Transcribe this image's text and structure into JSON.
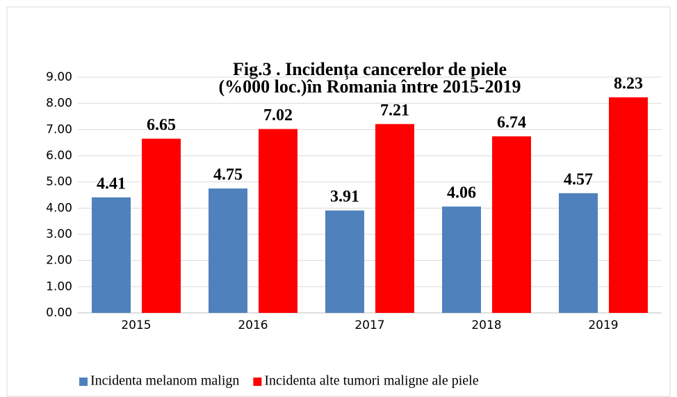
{
  "chart_data": {
    "type": "bar",
    "title": [
      "Fig.3 . Incidența cancerelor de piele",
      "(%000 loc.)în Romania între 2015-2019"
    ],
    "categories": [
      "2015",
      "2016",
      "2017",
      "2018",
      "2019"
    ],
    "series": [
      {
        "name": "Incidenta melanom malign",
        "color": "#4f81bd",
        "values": [
          4.41,
          4.75,
          3.91,
          4.06,
          4.57
        ]
      },
      {
        "name": "Incidenta alte tumori maligne ale piele",
        "color": "#ff0000",
        "values": [
          6.65,
          7.02,
          7.21,
          6.74,
          8.23
        ]
      }
    ],
    "ylim": [
      0,
      9
    ],
    "yticks": [
      {
        "value": 0,
        "label": "0.00"
      },
      {
        "value": 1,
        "label": "1.00"
      },
      {
        "value": 2,
        "label": "2.00"
      },
      {
        "value": 3,
        "label": "3.00"
      },
      {
        "value": 4,
        "label": "4.00"
      },
      {
        "value": 5,
        "label": "5.00"
      },
      {
        "value": 6,
        "label": "6.00"
      },
      {
        "value": 7,
        "label": "7.00"
      },
      {
        "value": 8,
        "label": "8.00"
      },
      {
        "value": 9,
        "label": "9.00"
      }
    ],
    "grid": true,
    "legend": "bottom"
  }
}
